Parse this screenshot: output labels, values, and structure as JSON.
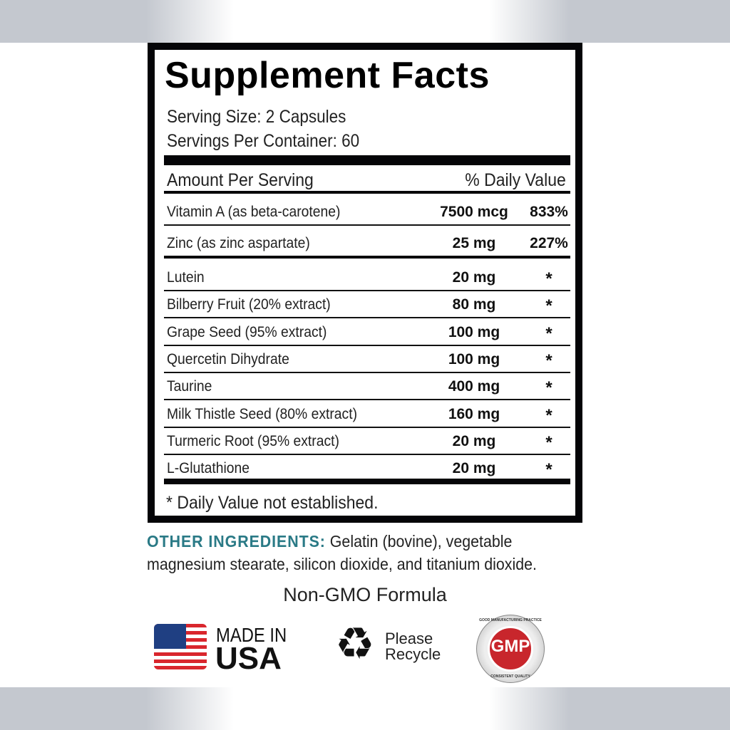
{
  "title": "Supplement Facts",
  "serving_size": "Serving Size: 2 Capsules",
  "servings_per_container": "Servings Per Container: 60",
  "header": {
    "amount": "Amount Per Serving",
    "dv": "% Daily Value"
  },
  "nutrients": [
    {
      "name": "Vitamin A (as beta-carotene)",
      "amount": "7500 mcg",
      "dv": "833%"
    },
    {
      "name": "Zinc (as zinc aspartate)",
      "amount": "25 mg",
      "dv": "227%"
    }
  ],
  "ingredients": [
    {
      "name": "Lutein",
      "amount": "20 mg",
      "dv": "*"
    },
    {
      "name": "Bilberry Fruit (20% extract)",
      "amount": "80 mg",
      "dv": "*"
    },
    {
      "name": "Grape Seed (95% extract)",
      "amount": "100 mg",
      "dv": "*"
    },
    {
      "name": "Quercetin Dihydrate",
      "amount": "100 mg",
      "dv": "*"
    },
    {
      "name": "Taurine",
      "amount": "400 mg",
      "dv": "*"
    },
    {
      "name": "Milk Thistle Seed (80% extract)",
      "amount": "160 mg",
      "dv": "*"
    },
    {
      "name": "Turmeric Root (95% extract)",
      "amount": "20 mg",
      "dv": "*"
    },
    {
      "name": "L-Glutathione",
      "amount": "20 mg",
      "dv": "*"
    }
  ],
  "footnote": "* Daily Value not established.",
  "other_ingredients": {
    "label": "OTHER INGREDIENTS:",
    "text": "Gelatin (bovine), vegetable magnesium stearate, silicon dioxide, and titanium dioxide."
  },
  "non_gmo": "Non-GMO Formula",
  "badges": {
    "made_in": "MADE IN",
    "usa": "USA",
    "please": "Please",
    "recycle": "Recycle",
    "gmp": "GMP",
    "gmp_top": "GOOD MANUFACTURING PRACTICE",
    "gmp_bottom": "CONSISTENT QUALITY"
  },
  "colors": {
    "accent": "#2a7a86",
    "gmp_red": "#c8262c",
    "flag_blue": "#1f3f82",
    "flag_red": "#d9262d"
  }
}
